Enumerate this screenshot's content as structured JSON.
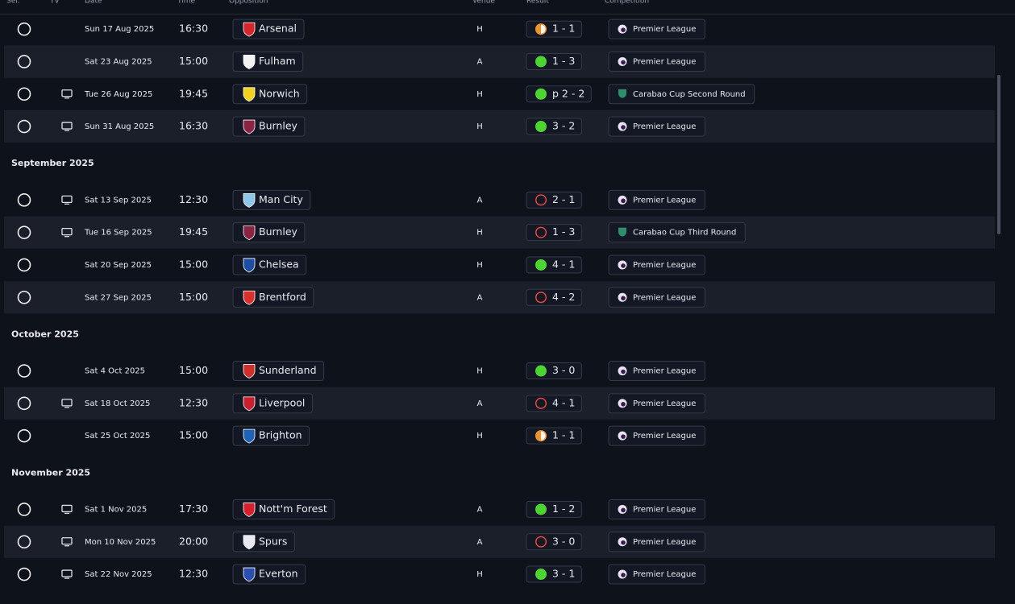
{
  "header": {
    "columns": [
      "Sel.",
      "TV",
      "Date",
      "Time",
      "Opposition",
      "Venue",
      "Result",
      "Competition"
    ]
  },
  "groups": [
    {
      "rows": [
        {
          "tv": false,
          "date": "Sun 17 Aug 2025",
          "time": "16:30",
          "opposition": "Arsenal",
          "badge_color": "#d6262c",
          "venue": "H",
          "result_icon": "half",
          "result_color": "#f0922b",
          "score": "1 - 1",
          "competition": "Premier League",
          "comp_icon": "pl"
        },
        {
          "tv": false,
          "date": "Sat 23 Aug 2025",
          "time": "15:00",
          "opposition": "Fulham",
          "badge_color": "#f2f2f2",
          "venue": "A",
          "result_icon": "filled",
          "result_color": "#4cd531",
          "score": "1 - 3",
          "competition": "Premier League",
          "comp_icon": "pl"
        },
        {
          "tv": true,
          "date": "Tue 26 Aug 2025",
          "time": "19:45",
          "opposition": "Norwich",
          "badge_color": "#f2d21b",
          "venue": "H",
          "result_icon": "filled",
          "result_color": "#4cd531",
          "score": "p 2 - 2",
          "competition": "Carabao Cup Second Round",
          "comp_icon": "cup"
        },
        {
          "tv": true,
          "date": "Sun 31 Aug 2025",
          "time": "16:30",
          "opposition": "Burnley",
          "badge_color": "#8a2442",
          "venue": "H",
          "result_icon": "filled",
          "result_color": "#4cd531",
          "score": "3 - 2",
          "competition": "Premier League",
          "comp_icon": "pl"
        }
      ]
    },
    {
      "title": "September 2025",
      "rows": [
        {
          "tv": true,
          "date": "Sat 13 Sep 2025",
          "time": "12:30",
          "opposition": "Man City",
          "badge_color": "#8ec5ea",
          "venue": "A",
          "result_icon": "ring",
          "result_color": "#e5483f",
          "score": "2 - 1",
          "competition": "Premier League",
          "comp_icon": "pl"
        },
        {
          "tv": true,
          "date": "Tue 16 Sep 2025",
          "time": "19:45",
          "opposition": "Burnley",
          "badge_color": "#8a2442",
          "venue": "H",
          "result_icon": "ring",
          "result_color": "#e5483f",
          "score": "1 - 3",
          "competition": "Carabao Cup Third Round",
          "comp_icon": "cup"
        },
        {
          "tv": false,
          "date": "Sat 20 Sep 2025",
          "time": "15:00",
          "opposition": "Chelsea",
          "badge_color": "#1f4fa3",
          "venue": "H",
          "result_icon": "filled",
          "result_color": "#4cd531",
          "score": "4 - 1",
          "competition": "Premier League",
          "comp_icon": "pl"
        },
        {
          "tv": false,
          "date": "Sat 27 Sep 2025",
          "time": "15:00",
          "opposition": "Brentford",
          "badge_color": "#d8302c",
          "venue": "A",
          "result_icon": "ring",
          "result_color": "#e5483f",
          "score": "4 - 2",
          "competition": "Premier League",
          "comp_icon": "pl"
        }
      ]
    },
    {
      "title": "October 2025",
      "rows": [
        {
          "tv": false,
          "date": "Sat 4 Oct 2025",
          "time": "15:00",
          "opposition": "Sunderland",
          "badge_color": "#d0302c",
          "venue": "H",
          "result_icon": "filled",
          "result_color": "#4cd531",
          "score": "3 - 0",
          "competition": "Premier League",
          "comp_icon": "pl"
        },
        {
          "tv": true,
          "date": "Sat 18 Oct 2025",
          "time": "12:30",
          "opposition": "Liverpool",
          "badge_color": "#c8202f",
          "venue": "A",
          "result_icon": "ring",
          "result_color": "#e5483f",
          "score": "4 - 1",
          "competition": "Premier League",
          "comp_icon": "pl"
        },
        {
          "tv": false,
          "date": "Sat 25 Oct 2025",
          "time": "15:00",
          "opposition": "Brighton",
          "badge_color": "#1f63b8",
          "venue": "H",
          "result_icon": "half",
          "result_color": "#f0922b",
          "score": "1 - 1",
          "competition": "Premier League",
          "comp_icon": "pl"
        }
      ]
    },
    {
      "title": "November 2025",
      "rows": [
        {
          "tv": true,
          "date": "Sat 1 Nov 2025",
          "time": "17:30",
          "opposition": "Nott'm Forest",
          "badge_color": "#d8202c",
          "venue": "A",
          "result_icon": "filled",
          "result_color": "#4cd531",
          "score": "1 - 2",
          "competition": "Premier League",
          "comp_icon": "pl"
        },
        {
          "tv": true,
          "date": "Mon 10 Nov 2025",
          "time": "20:00",
          "opposition": "Spurs",
          "badge_color": "#e8e8f0",
          "venue": "A",
          "result_icon": "ring",
          "result_color": "#e5483f",
          "score": "3 - 0",
          "competition": "Premier League",
          "comp_icon": "pl"
        },
        {
          "tv": true,
          "date": "Sat 22 Nov 2025",
          "time": "12:30",
          "opposition": "Everton",
          "badge_color": "#2a4fb0",
          "venue": "H",
          "result_icon": "filled",
          "result_color": "#4cd531",
          "score": "3 - 1",
          "competition": "Premier League",
          "comp_icon": "pl"
        }
      ]
    }
  ]
}
